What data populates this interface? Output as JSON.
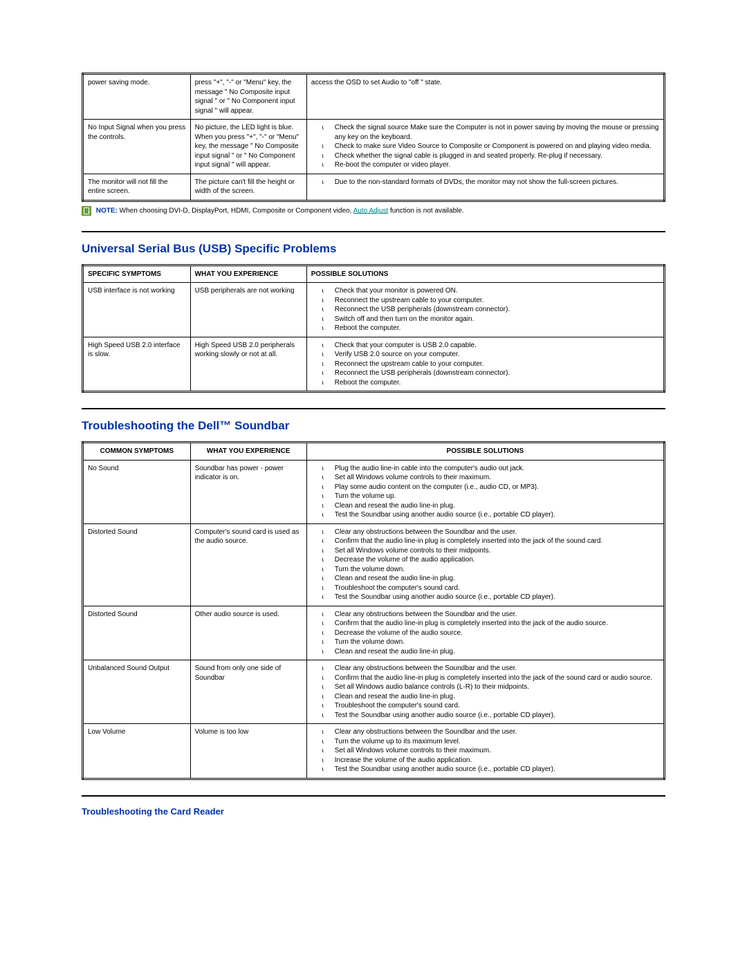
{
  "table1": {
    "rows": [
      {
        "symptom": "power saving mode.",
        "experience": "press \"+\", \"-\" or \"Menu\" key, the message \" No Composite input signal \" or \" No Component input signal \" will appear.",
        "solutions": [
          "access the OSD to set  Audio to \"off \" state."
        ],
        "solutions_as_list": false
      },
      {
        "symptom": "No Input Signal when you press the controls.",
        "experience": "No picture, the LED light is blue. When you press \"+\", \"-\" or \"Menu\" key, the message \" No Composite input signal \" or \" No Component input signal \" will appear.",
        "solutions": [
          "Check the signal source Make sure the Computer is not in power saving by moving the mouse or pressing any key on the keyboard.",
          "Check to make sure Video Source to Composite or Component is powered on and playing video media.",
          "Check whether the signal cable is plugged in and seated properly.  Re-plug if necessary.",
          "Re-boot the computer or video player."
        ],
        "solutions_as_list": true
      },
      {
        "symptom": "The monitor will not fill the entire screen.",
        "experience": "The picture can't fill the height or width of the screen.",
        "solutions": [
          "Due to the non-standard formats of DVDs, the monitor may not show the full-screen pictures."
        ],
        "solutions_as_list": true
      }
    ]
  },
  "note": {
    "label": "NOTE:",
    "before": "When choosing DVI-D, DisplayPort, HDMI, Composite or Component video, ",
    "link": "Auto Adjust",
    "after": " function is not available."
  },
  "usb": {
    "heading": "Universal Serial Bus (USB) Specific Problems",
    "headers": [
      "SPECIFIC SYMPTOMS",
      "WHAT YOU EXPERIENCE",
      "POSSIBLE SOLUTIONS"
    ],
    "rows": [
      {
        "symptom": "USB interface is not working",
        "experience": "USB peripherals are not working",
        "solutions": [
          "Check that your monitor is powered ON.",
          "Reconnect the upstream cable to your computer.",
          "Reconnect the USB peripherals (downstream connector).",
          "Switch off and then turn on the monitor again.",
          "Reboot the computer."
        ]
      },
      {
        "symptom": "High Speed USB 2.0 interface is slow.",
        "experience": "High Speed USB 2.0 peripherals working slowly or not at all.",
        "solutions": [
          "Check that your computer is USB 2.0 capable.",
          "Verify USB 2.0 source on your computer.",
          "Reconnect the upstream cable to your computer.",
          "Reconnect the USB peripherals (downstream connector).",
          "Reboot the computer."
        ]
      }
    ]
  },
  "soundbar": {
    "heading": "Troubleshooting the Dell™ Soundbar",
    "headers": [
      "COMMON SYMPTOMS",
      "WHAT YOU EXPERIENCE",
      "POSSIBLE SOLUTIONS"
    ],
    "rows": [
      {
        "symptom": "No Sound",
        "experience": "Soundbar has power - power indicator is on.",
        "solutions": [
          "Plug the audio line-in cable into the computer's audio out jack.",
          "Set all Windows volume controls to their maximum.",
          "Play some audio content on the computer (i.e., audio CD, or MP3).",
          "Turn the volume up.",
          "Clean and reseat the audio line-in plug.",
          "Test the Soundbar using another audio source (i.e., portable CD player)."
        ]
      },
      {
        "symptom": "Distorted Sound",
        "experience": "Computer's sound card is used as the audio source.",
        "solutions": [
          "Clear any obstructions between the Soundbar and the user.",
          "Confirm that the audio line-in plug is completely inserted into the jack of the sound card.",
          "Set all Windows volume controls to their midpoints.",
          "Decrease the volume of the audio application.",
          "Turn the volume down.",
          "Clean and reseat the audio line-in plug.",
          "Troubleshoot the computer's sound card.",
          "Test the Soundbar using another audio source (i.e., portable CD player)."
        ]
      },
      {
        "symptom": "Distorted Sound",
        "experience": "Other audio source is used.",
        "solutions": [
          "Clear any obstructions between the Soundbar and the user.",
          "Confirm that the audio line-in plug is completely inserted into the jack of the audio source.",
          "Decrease the volume of the audio source.",
          "Turn the volume down.",
          "Clean and reseat the audio line-in plug."
        ]
      },
      {
        "symptom": "Unbalanced Sound Output",
        "experience": "Sound from only one side of Soundbar",
        "solutions": [
          "Clear any obstructions between the Soundbar and the user.",
          "Confirm that the audio line-in plug is completely inserted into the jack of the sound card or audio source.",
          "Set all Windows audio balance controls (L-R) to their midpoints.",
          "Clean and reseat the audio line-in plug.",
          "Troubleshoot the computer's sound card.",
          "Test the Soundbar using another audio source (i.e., portable CD player)."
        ]
      },
      {
        "symptom": "Low Volume",
        "experience": "Volume is too low",
        "solutions": [
          "Clear any obstructions between the Soundbar and the user.",
          "Turn the volume up to its maximum level.",
          "Set all Windows volume controls to their maximum.",
          "Increase the volume of the audio application.",
          "Test the Soundbar using another audio source (i.e., portable CD player)."
        ]
      }
    ]
  },
  "cardreader": {
    "heading": "Troubleshooting the Card Reader"
  }
}
